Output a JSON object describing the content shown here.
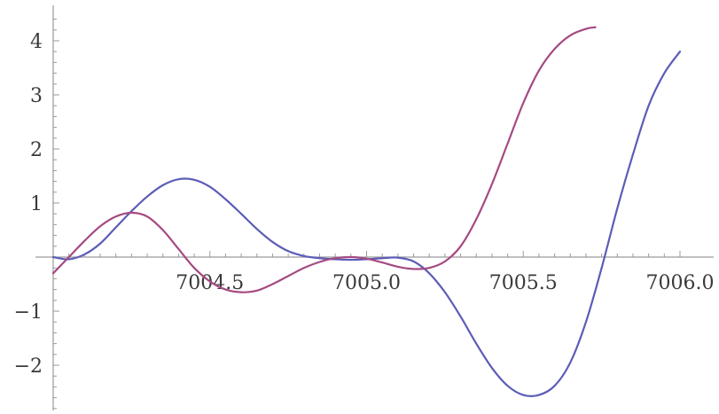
{
  "chart_data": {
    "type": "line",
    "title": "",
    "xlabel": "",
    "ylabel": "",
    "xlim": [
      7004.0,
      7006.0
    ],
    "ylim": [
      -2.8,
      4.6
    ],
    "grid": false,
    "legend": "none",
    "x_ticks": [
      {
        "value": 7004.5,
        "label": "7004.5"
      },
      {
        "value": 7005.0,
        "label": "7005.0"
      },
      {
        "value": 7005.5,
        "label": "7005.5"
      },
      {
        "value": 7006.0,
        "label": "7006.0"
      }
    ],
    "y_ticks": [
      {
        "value": -2,
        "label": "−2"
      },
      {
        "value": -1,
        "label": "−1"
      },
      {
        "value": 1,
        "label": "1"
      },
      {
        "value": 2,
        "label": "2"
      },
      {
        "value": 3,
        "label": "3"
      },
      {
        "value": 4,
        "label": "4"
      }
    ],
    "series": [
      {
        "color": "#5c5cb8",
        "x": [
          7004.0,
          7004.05,
          7004.1,
          7004.15,
          7004.2,
          7004.25,
          7004.3,
          7004.35,
          7004.4,
          7004.45,
          7004.5,
          7004.55,
          7004.6,
          7004.65,
          7004.7,
          7004.75,
          7004.8,
          7004.85,
          7004.9,
          7004.95,
          7005.0,
          7005.05,
          7005.1,
          7005.15,
          7005.2,
          7005.25,
          7005.3,
          7005.35,
          7005.4,
          7005.45,
          7005.5,
          7005.55,
          7005.6,
          7005.65,
          7005.7,
          7005.75,
          7005.8,
          7005.85,
          7005.9,
          7005.95,
          7006.0
        ],
        "y": [
          0.0,
          -0.04,
          0.05,
          0.25,
          0.55,
          0.85,
          1.12,
          1.33,
          1.44,
          1.43,
          1.3,
          1.07,
          0.8,
          0.52,
          0.28,
          0.11,
          0.02,
          -0.02,
          -0.04,
          -0.05,
          -0.04,
          -0.02,
          -0.01,
          -0.08,
          -0.3,
          -0.65,
          -1.1,
          -1.6,
          -2.05,
          -2.38,
          -2.55,
          -2.55,
          -2.38,
          -1.95,
          -1.2,
          -0.2,
          0.9,
          1.9,
          2.8,
          3.4,
          3.8
        ]
      },
      {
        "color": "#a54a82",
        "x": [
          7004.0,
          7004.05,
          7004.1,
          7004.15,
          7004.2,
          7004.25,
          7004.3,
          7004.35,
          7004.4,
          7004.45,
          7004.5,
          7004.55,
          7004.6,
          7004.65,
          7004.7,
          7004.75,
          7004.8,
          7004.85,
          7004.9,
          7004.95,
          7005.0,
          7005.05,
          7005.1,
          7005.15,
          7005.2,
          7005.25,
          7005.3,
          7005.35,
          7005.4,
          7005.45,
          7005.5,
          7005.55,
          7005.6,
          7005.65,
          7005.7,
          7005.73
        ],
        "y": [
          -0.3,
          0.0,
          0.3,
          0.57,
          0.75,
          0.82,
          0.75,
          0.5,
          0.15,
          -0.2,
          -0.45,
          -0.6,
          -0.65,
          -0.62,
          -0.5,
          -0.35,
          -0.2,
          -0.09,
          -0.02,
          0.0,
          -0.03,
          -0.1,
          -0.18,
          -0.22,
          -0.2,
          -0.08,
          0.2,
          0.7,
          1.35,
          2.1,
          2.85,
          3.45,
          3.85,
          4.1,
          4.22,
          4.25
        ]
      }
    ]
  }
}
